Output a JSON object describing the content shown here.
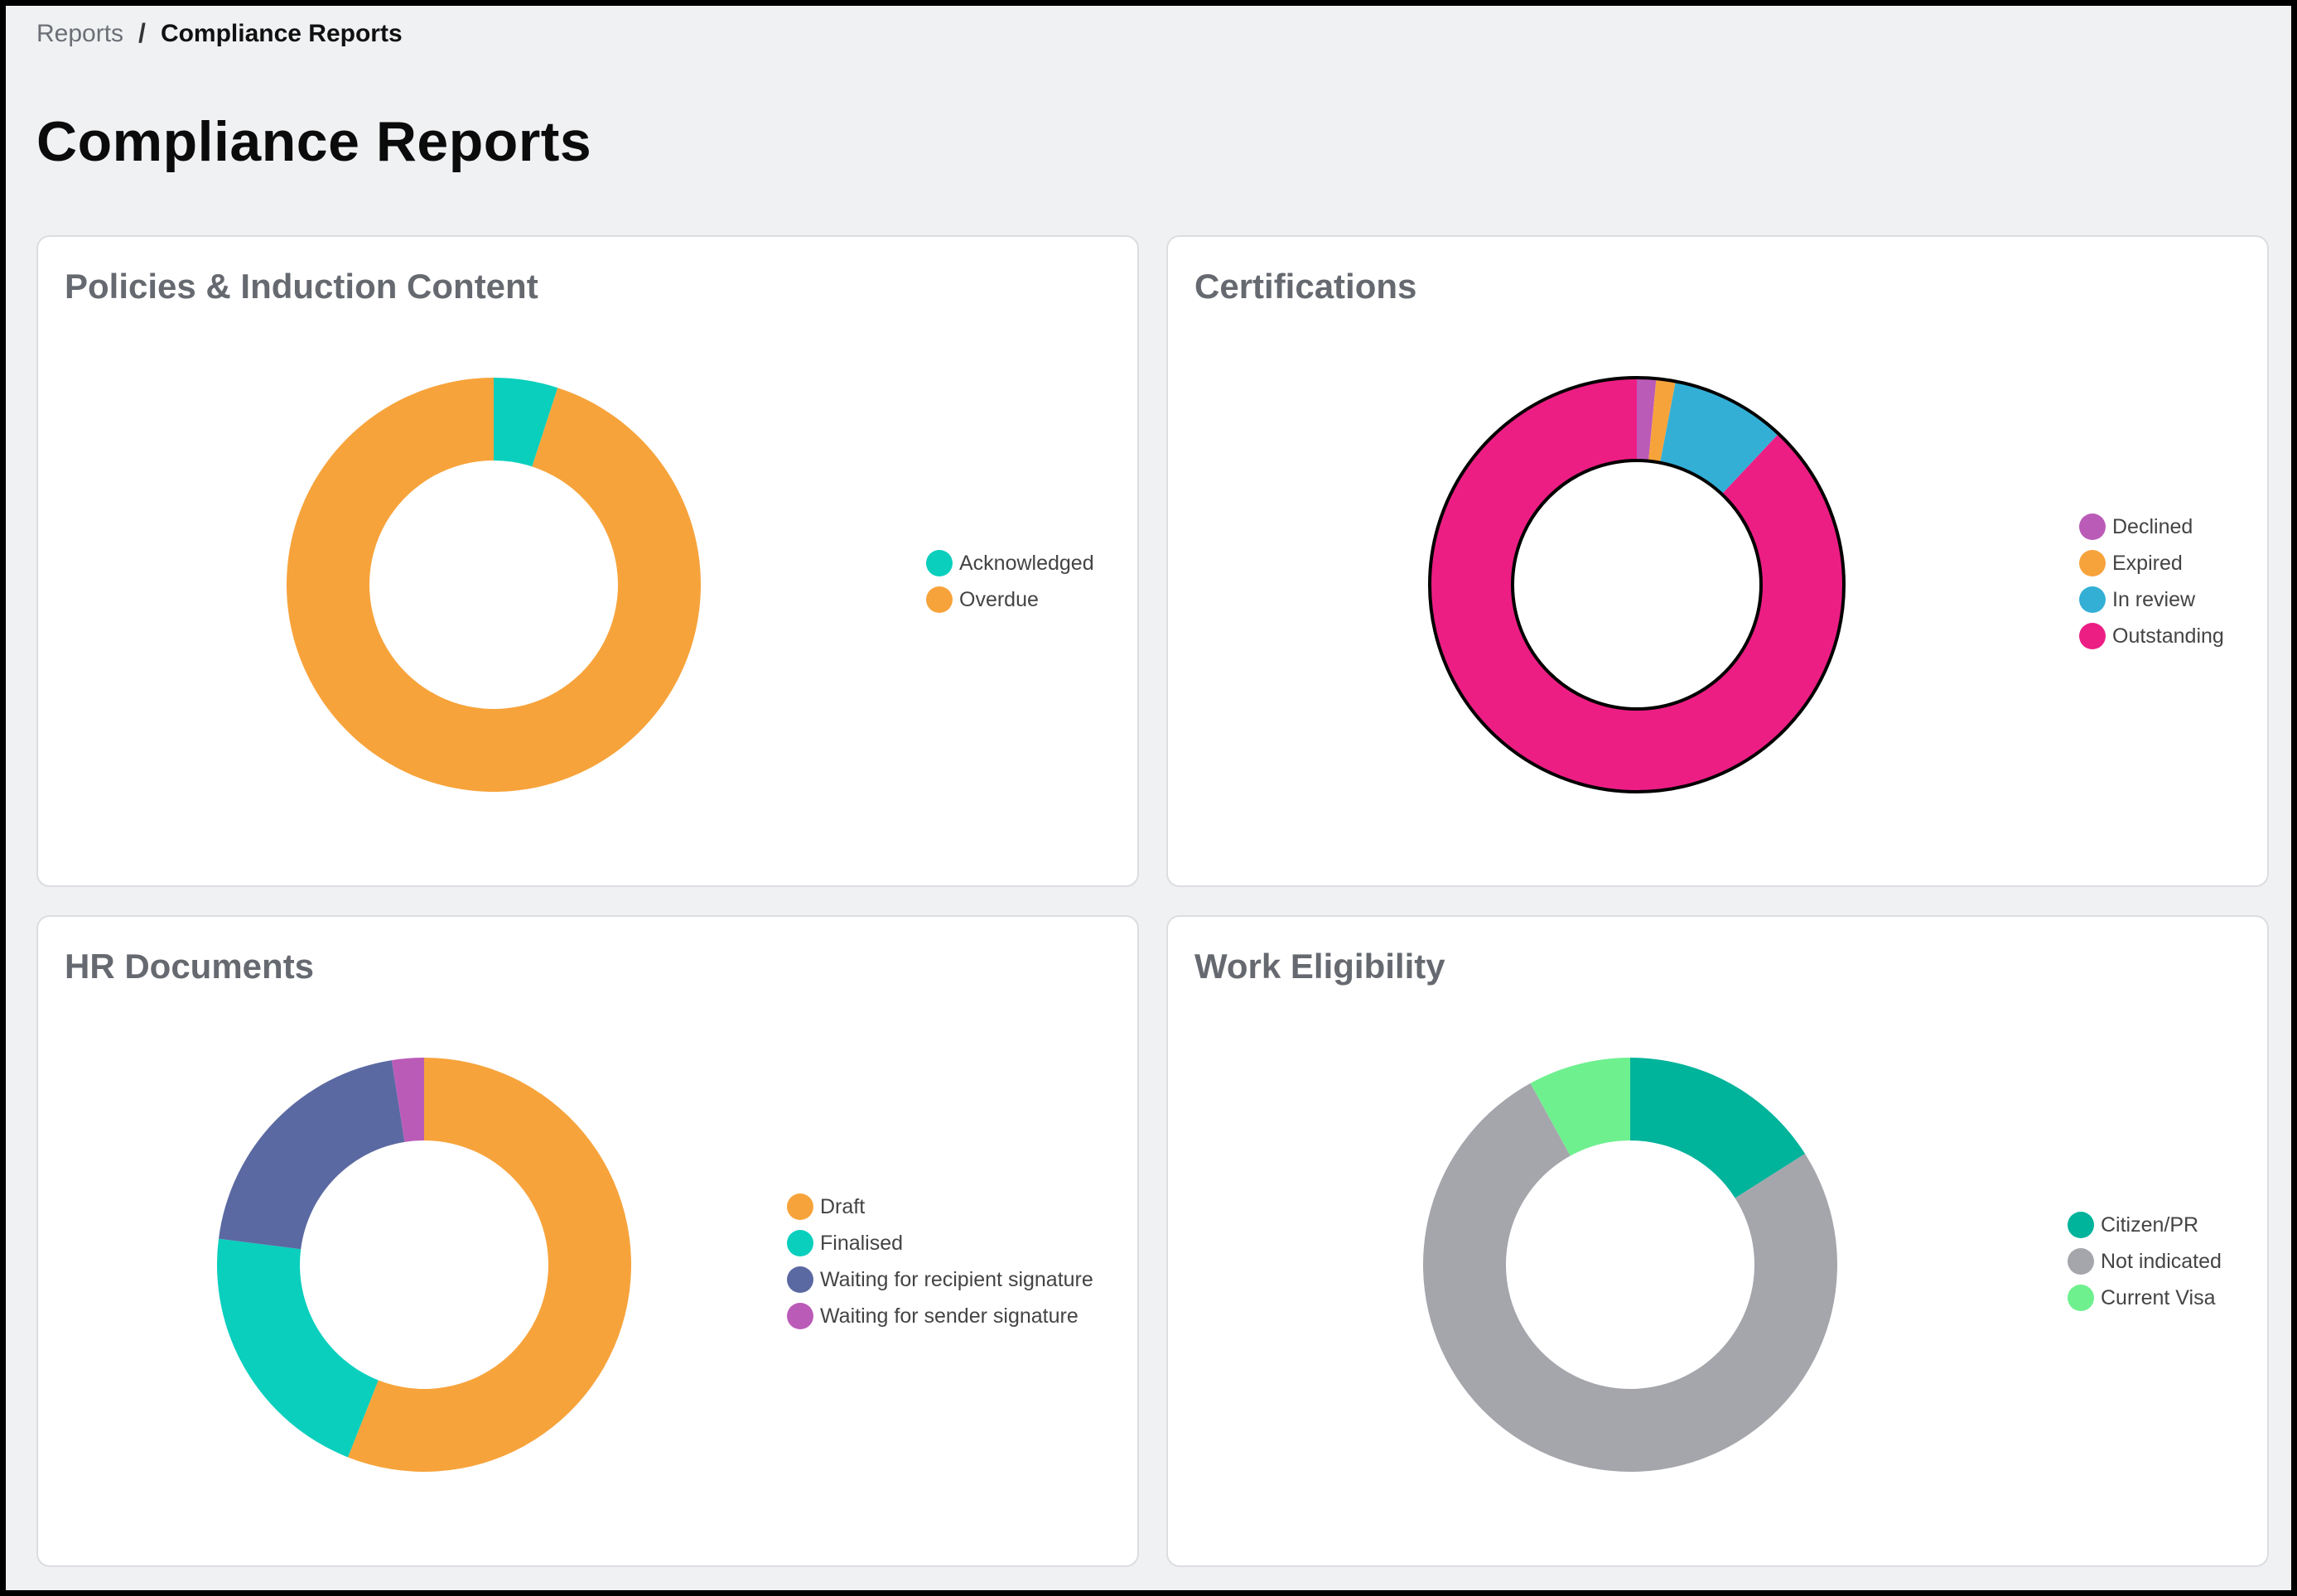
{
  "breadcrumb": {
    "parent": "Reports",
    "separator": "/",
    "current": "Compliance Reports"
  },
  "page_title": "Compliance Reports",
  "colors": {
    "page_bg": "#f0f1f3",
    "card_bg": "#ffffff",
    "orange": "#f7a33b",
    "teal": "#0acfbd",
    "magenta": "#ec1e84",
    "purple": "#bb5bb8",
    "blue": "#33afd6",
    "navy": "#5b69a2",
    "green": "#00b39b",
    "grey": "#a5a6ac",
    "light_green": "#6ff08f"
  },
  "chart_data": [
    {
      "type": "pie",
      "title": "Policies & Induction Content",
      "legend_position": "right",
      "slices": [
        {
          "label": "Acknowledged",
          "value": 5,
          "color": "#0acfbd"
        },
        {
          "label": "Overdue",
          "value": 95,
          "color": "#f7a33b"
        }
      ]
    },
    {
      "type": "pie",
      "title": "Certifications",
      "legend_position": "right",
      "outlined": true,
      "slices": [
        {
          "label": "Declined",
          "value": 1.5,
          "color": "#bb5bb8"
        },
        {
          "label": "Expired",
          "value": 1.5,
          "color": "#f7a33b"
        },
        {
          "label": "In review",
          "value": 9,
          "color": "#33afd6"
        },
        {
          "label": "Outstanding",
          "value": 88,
          "color": "#ec1e84"
        }
      ]
    },
    {
      "type": "pie",
      "title": "HR Documents",
      "legend_position": "right",
      "slices": [
        {
          "label": "Draft",
          "value": 56,
          "color": "#f7a33b"
        },
        {
          "label": "Finalised",
          "value": 21,
          "color": "#0acfbd"
        },
        {
          "label": "Waiting for recipient signature",
          "value": 20.5,
          "color": "#5b69a2"
        },
        {
          "label": "Waiting for sender signature",
          "value": 2.5,
          "color": "#bb5bb8"
        }
      ]
    },
    {
      "type": "pie",
      "title": "Work Eligibility",
      "legend_position": "right",
      "slices": [
        {
          "label": "Citizen/PR",
          "value": 16,
          "color": "#00b39b"
        },
        {
          "label": "Not indicated",
          "value": 76,
          "color": "#a5a6ac"
        },
        {
          "label": "Current Visa",
          "value": 8,
          "color": "#6ff08f"
        }
      ]
    }
  ]
}
